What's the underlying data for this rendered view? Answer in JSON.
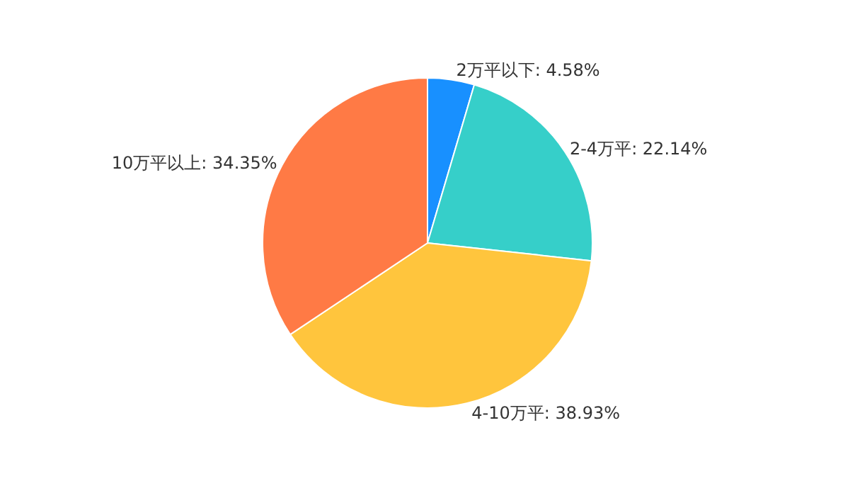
{
  "chart_data": {
    "type": "pie",
    "categories": [
      "2万平以下",
      "2-4万平",
      "4-10万平",
      "10万平以上"
    ],
    "values": [
      4.58,
      22.14,
      38.93,
      34.35
    ],
    "value_labels": [
      "4.58%",
      "22.14%",
      "38.93%",
      "34.35%"
    ],
    "colors": [
      "#1890ff",
      "#36cfc9",
      "#ffc53d",
      "#ff7a45"
    ],
    "legend": false
  }
}
